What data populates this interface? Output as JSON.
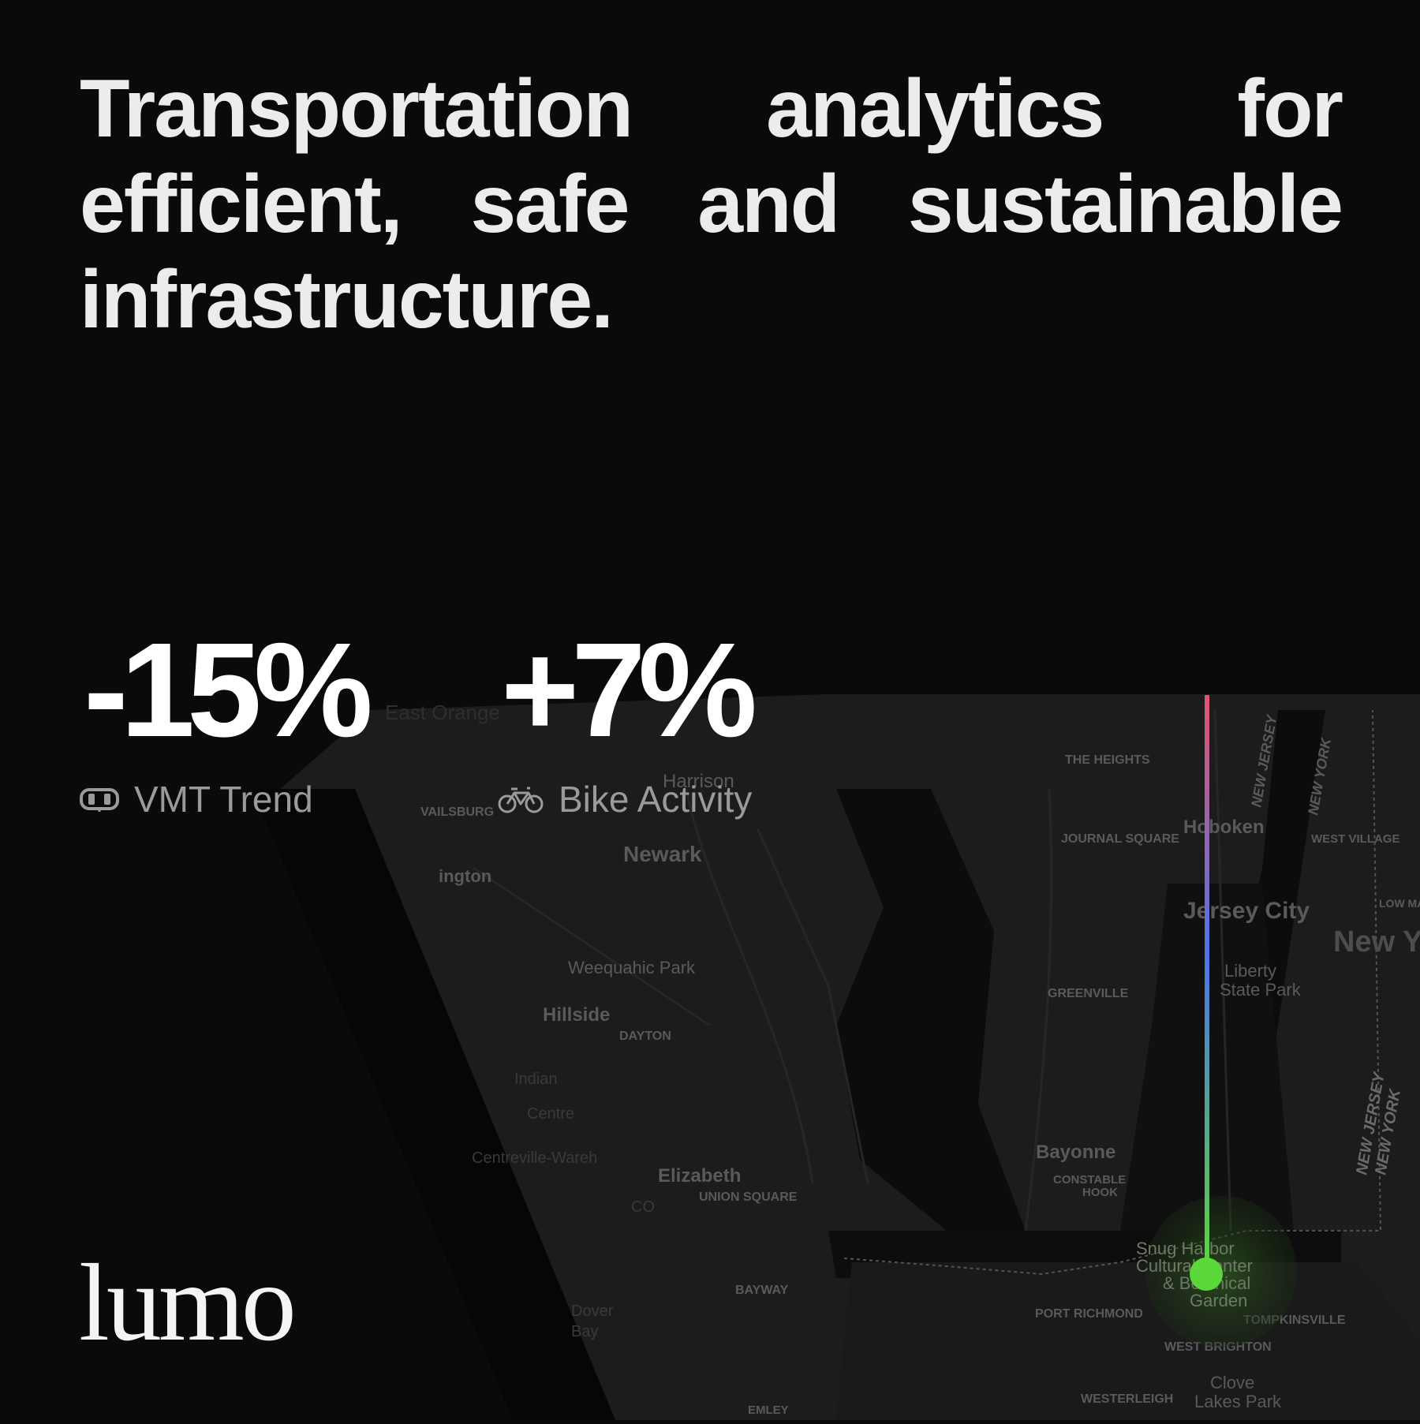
{
  "headline": "Transportation analytics for efficient, safe and sustainable infrastructure.",
  "stats": [
    {
      "value": "-15%",
      "label": "VMT Trend",
      "icon": "car-icon"
    },
    {
      "value": "+7%",
      "label": "Bike Activity",
      "icon": "bicycle-icon"
    }
  ],
  "brand": "lumo",
  "colors": {
    "background": "#0a0a0a",
    "route_start": "#e0556f",
    "route_mid": "#4f74e8",
    "route_end": "#5ad83a"
  },
  "map_labels": {
    "east_orange": "East Orange",
    "the_heights": "THE HEIGHTS",
    "harrison": "Harrison",
    "vailsburg": "VAILSBURG",
    "journal_square": "JOURNAL SQUARE",
    "hoboken": "Hoboken",
    "west_village": "WEST VILLAGE",
    "newark": "Newark",
    "irvington": "ington",
    "jersey_city": "Jersey City",
    "new_york": "New Y",
    "liberty_line1": "Liberty",
    "liberty_line2": "State Park",
    "weequahic": "Weequahic Park",
    "greenville": "GREENVILLE",
    "hillside": "Hillside",
    "dayton": "DAYTON",
    "indian": "Indian",
    "centre": "Centre",
    "centreville": "Centreville-Wareh",
    "bayonne": "Bayonne",
    "constable_line1": "CONSTABLE",
    "constable_line2": "HOOK",
    "elizabeth": "Elizabeth",
    "union_square": "UNION SQUARE",
    "co": "CO",
    "snug_line1": "Snug Harbor",
    "snug_line2": "Cultural Center",
    "snug_line3": "& Botanical",
    "snug_line4": "Garden",
    "bayway": "BAYWAY",
    "dover_line1": "Dover",
    "dover_line2": "Bay",
    "port_richmond": "PORT RICHMOND",
    "tompkinsville": "TOMPKINSVILLE",
    "west_brighton": "WEST BRIGHTON",
    "clove_line1": "Clove",
    "clove_line2": "Lakes Park",
    "westerleigh": "WESTERLEIGH",
    "emley": "EMLEY",
    "nj_ny_1": "NEW JERSEY",
    "nj_ny_2": "NEW YORK",
    "nj_ny_3": "NEW JERSEY",
    "nj_ny_4": "NEW YORK",
    "lower_manh": "LOW MANH"
  }
}
